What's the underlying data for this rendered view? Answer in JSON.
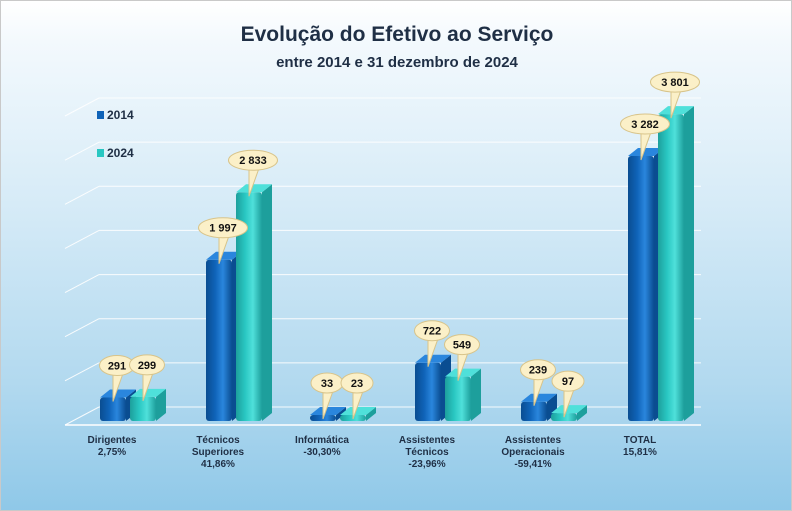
{
  "title": "Evolução do Efetivo ao Serviço",
  "subtitle": "entre 2014 e 31 dezembro de 2024",
  "colors": {
    "series_2014_front": "#0f63b8",
    "series_2014_top": "#2a86dd",
    "series_2014_side": "#0a4d91",
    "series_2024_front": "#29c7c2",
    "series_2024_top": "#4fe0da",
    "series_2024_side": "#1d9f9c",
    "callout_fill": "#fbf0c8",
    "callout_stroke": "#d8c48a",
    "grid": "#ffffff"
  },
  "chart_data": {
    "type": "bar",
    "title": "Evolução do Efetivo ao Serviço",
    "subtitle": "entre 2014 e 31 dezembro de 2024",
    "categories": [
      [
        "Dirigentes"
      ],
      [
        "Técnicos",
        "Superiores"
      ],
      [
        "Informática"
      ],
      [
        "Assistentes",
        "Técnicos"
      ],
      [
        "Assistentes",
        "Operacionais"
      ],
      [
        "TOTAL"
      ]
    ],
    "category_changes": [
      "2,75%",
      "41,86%",
      "-30,30%",
      "-23,96%",
      "-59,41%",
      "15,81%"
    ],
    "series": [
      {
        "name": "2014",
        "values": [
          291,
          1997,
          33,
          722,
          239,
          3282
        ],
        "labels": [
          "291",
          "1 997",
          "33",
          "722",
          "239",
          "3 282"
        ]
      },
      {
        "name": "2024",
        "values": [
          299,
          2833,
          23,
          549,
          97,
          3801
        ],
        "labels": [
          "299",
          "2 833",
          "23",
          "549",
          "97",
          "3 801"
        ]
      }
    ],
    "ylim": [
      0,
      4000
    ],
    "grid": true,
    "legend": "top-left"
  }
}
